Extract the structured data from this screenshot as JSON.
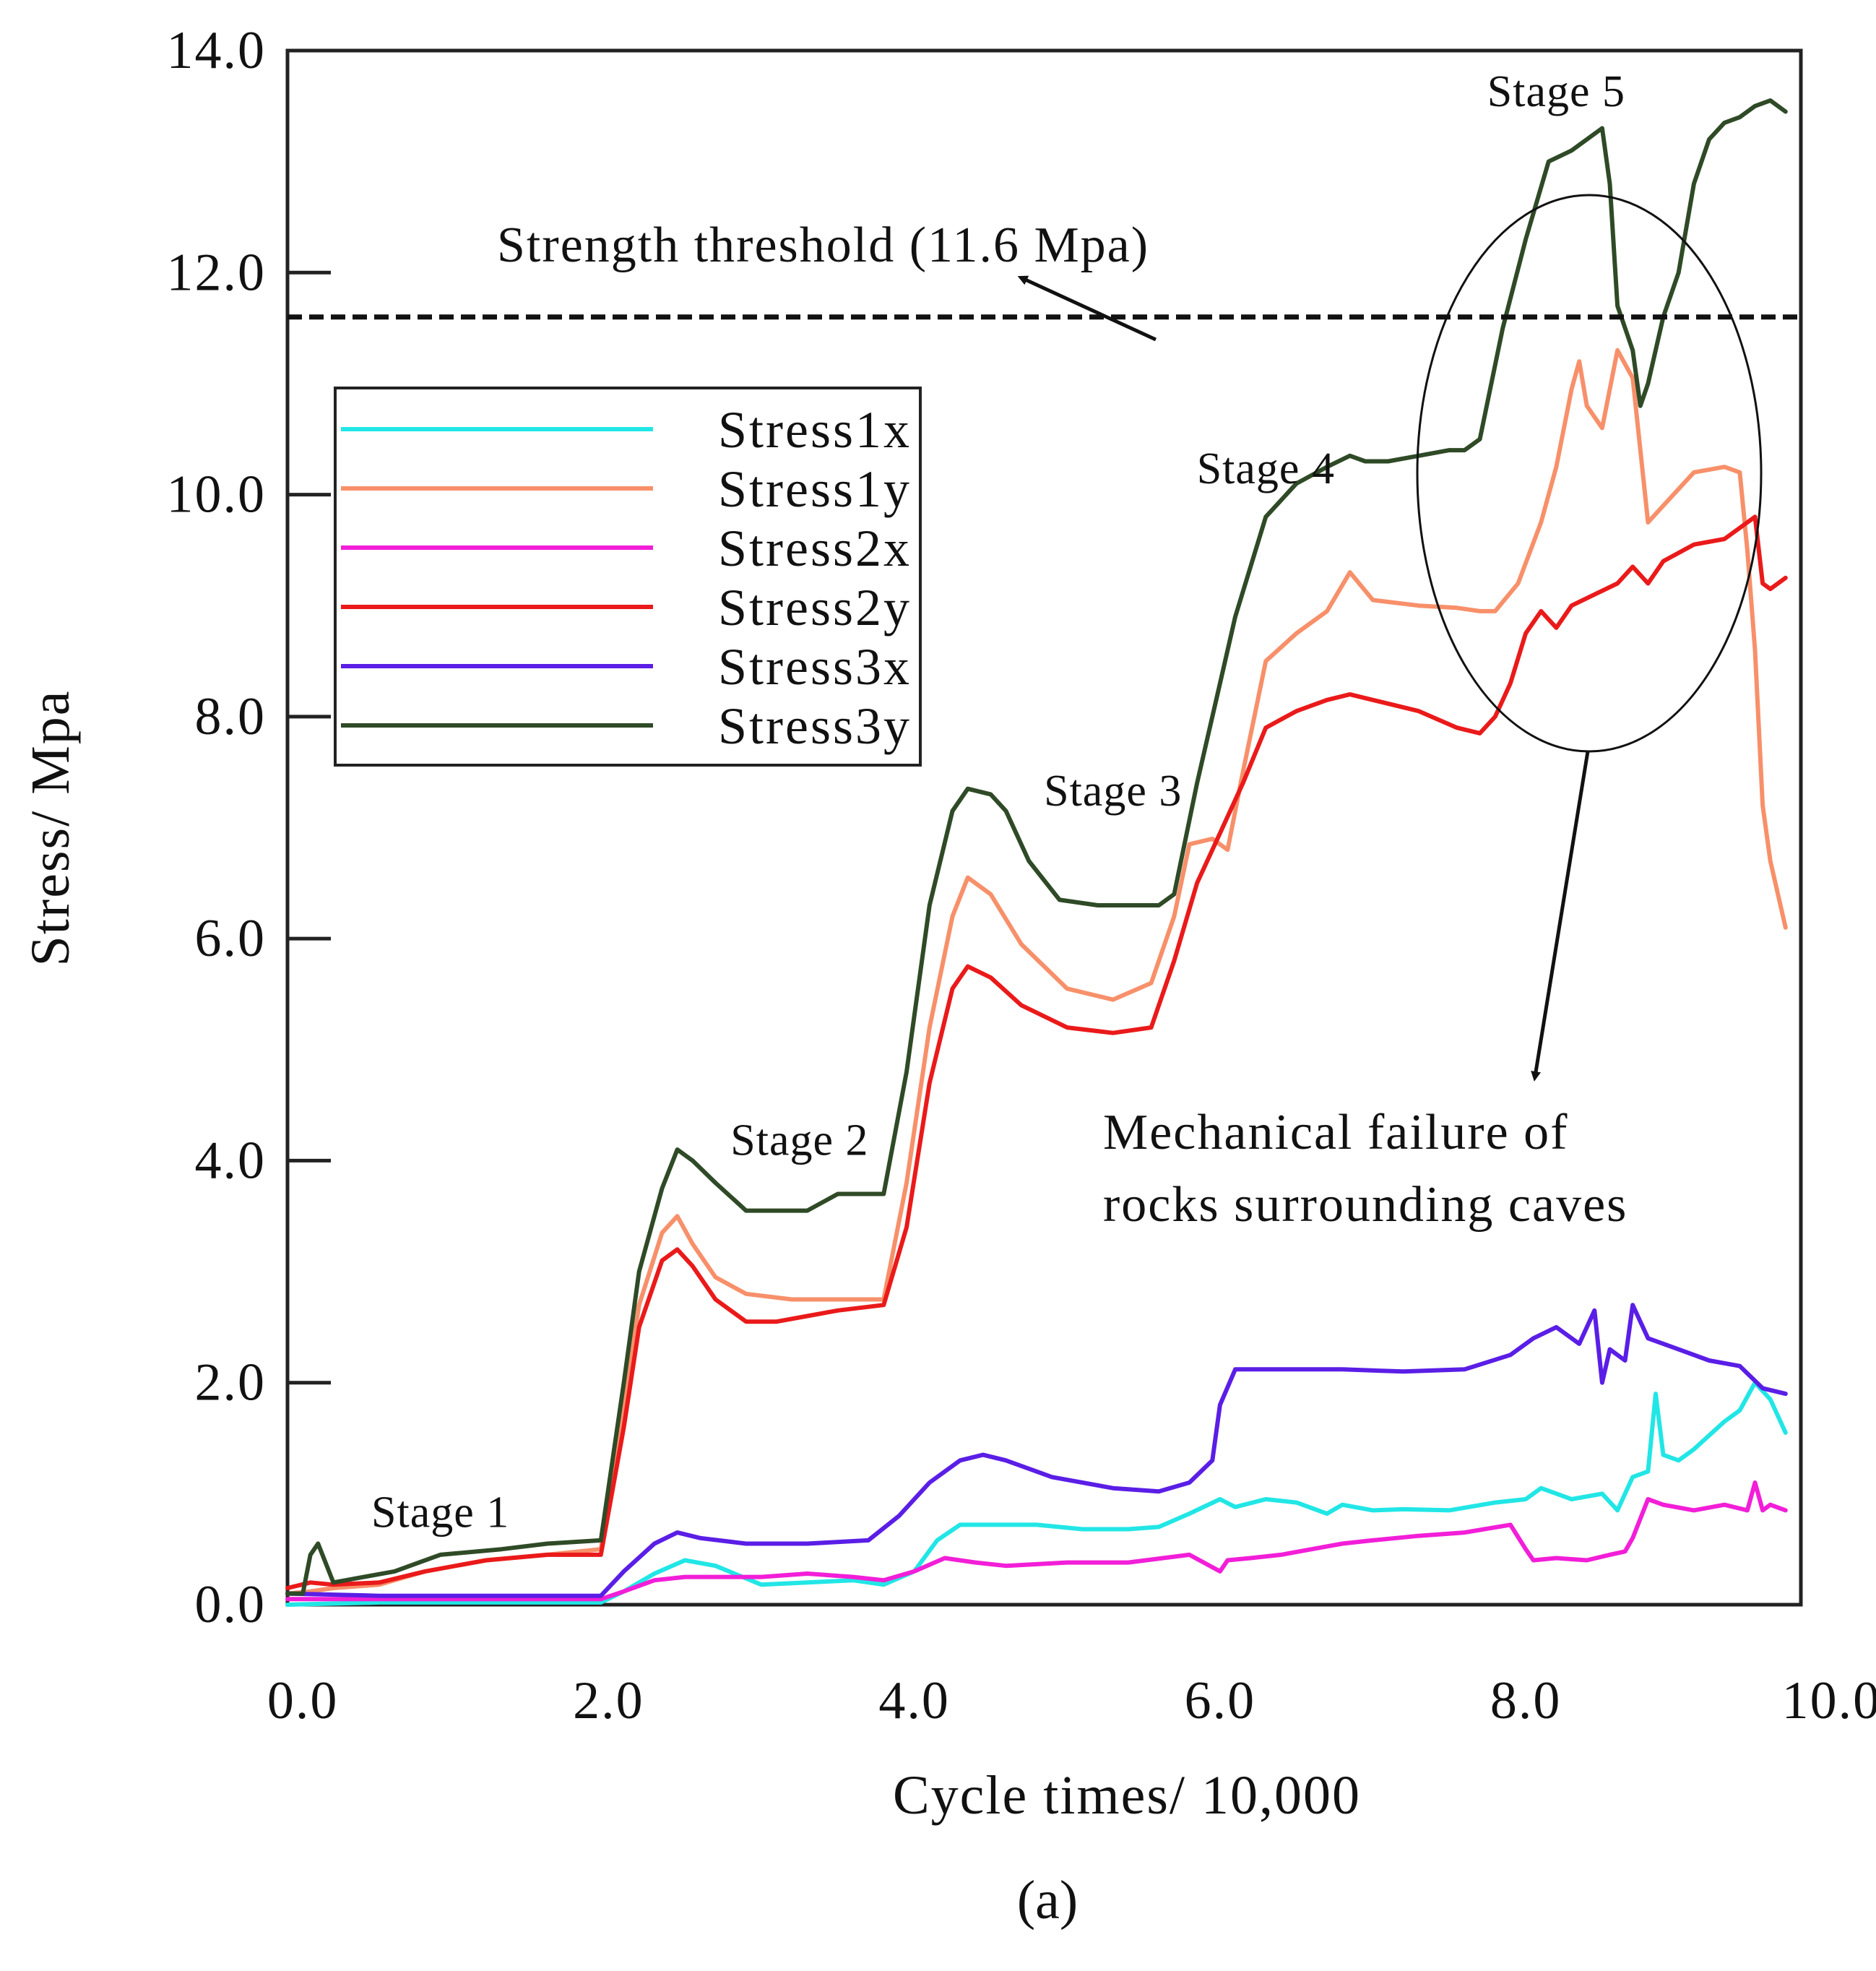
{
  "chart_data": {
    "type": "line",
    "title": "",
    "xlabel": "Cycle times/ 10,000",
    "ylabel": "Stress/ Mpa",
    "xlim": [
      -0.1,
      9.8
    ],
    "ylim": [
      0.0,
      14.0
    ],
    "x_ticks": [
      "0.0",
      "2.0",
      "4.0",
      "6.0",
      "8.0",
      "10.0"
    ],
    "y_ticks": [
      "0.0",
      "2.0",
      "4.0",
      "6.0",
      "8.0",
      "10.0",
      "12.0",
      "14.0"
    ],
    "grid": false,
    "legend_position": "upper-left",
    "threshold": {
      "label": "Strength threshold (11.6 Mpa)",
      "value": 11.6
    },
    "annotations": {
      "stages": [
        {
          "label": "Stage 1",
          "x": 0.9,
          "y": 0.7
        },
        {
          "label": "Stage 2",
          "x": 3.25,
          "y": 4.05
        },
        {
          "label": "Stage 3",
          "x": 5.3,
          "y": 7.2
        },
        {
          "label": "Stage 4",
          "x": 6.3,
          "y": 10.1
        },
        {
          "label": "Stage 5",
          "x": 8.2,
          "y": 13.5
        }
      ],
      "failure_note_line1": "Mechanical failure of",
      "failure_note_line2": "rocks surrounding caves"
    },
    "subfigure_label": "(a)",
    "series": [
      {
        "name": "Stress1x",
        "color": "#22e6e6",
        "x": [
          -0.1,
          0.5,
          1.0,
          1.5,
          1.95,
          2.1,
          2.3,
          2.5,
          2.7,
          3.0,
          3.3,
          3.6,
          3.8,
          4.0,
          4.15,
          4.3,
          4.5,
          4.8,
          5.1,
          5.4,
          5.6,
          5.8,
          6.0,
          6.1,
          6.3,
          6.5,
          6.7,
          6.8,
          7.0,
          7.2,
          7.5,
          7.8,
          8.0,
          8.1,
          8.3,
          8.5,
          8.6,
          8.7,
          8.8,
          8.85,
          8.9,
          9.0,
          9.1,
          9.3,
          9.4,
          9.5,
          9.6,
          9.7
        ],
        "y": [
          0.0,
          0.02,
          0.02,
          0.02,
          0.02,
          0.12,
          0.28,
          0.4,
          0.35,
          0.18,
          0.2,
          0.22,
          0.18,
          0.3,
          0.58,
          0.72,
          0.72,
          0.72,
          0.68,
          0.68,
          0.7,
          0.82,
          0.95,
          0.88,
          0.95,
          0.92,
          0.82,
          0.9,
          0.85,
          0.86,
          0.85,
          0.92,
          0.95,
          1.05,
          0.95,
          1.0,
          0.85,
          1.15,
          1.2,
          1.9,
          1.35,
          1.3,
          1.4,
          1.65,
          1.75,
          2.0,
          1.85,
          1.55
        ]
      },
      {
        "name": "Stress1y",
        "color": "#f7906a",
        "x": [
          -0.1,
          0.05,
          0.2,
          0.5,
          0.8,
          1.2,
          1.6,
          1.95,
          2.1,
          2.2,
          2.35,
          2.45,
          2.55,
          2.7,
          2.9,
          3.2,
          3.5,
          3.8,
          3.95,
          4.1,
          4.25,
          4.35,
          4.5,
          4.7,
          5.0,
          5.3,
          5.55,
          5.7,
          5.8,
          5.95,
          6.05,
          6.15,
          6.3,
          6.5,
          6.7,
          6.85,
          7.0,
          7.3,
          7.55,
          7.7,
          7.8,
          7.95,
          8.1,
          8.2,
          8.3,
          8.35,
          8.4,
          8.5,
          8.6,
          8.7,
          8.8,
          8.9,
          9.1,
          9.3,
          9.4,
          9.45,
          9.5,
          9.55,
          9.6,
          9.7
        ],
        "y": [
          0.1,
          0.12,
          0.15,
          0.18,
          0.3,
          0.4,
          0.45,
          0.5,
          1.8,
          2.7,
          3.35,
          3.5,
          3.25,
          2.95,
          2.8,
          2.75,
          2.75,
          2.75,
          3.8,
          5.2,
          6.2,
          6.55,
          6.4,
          5.95,
          5.55,
          5.45,
          5.6,
          6.2,
          6.85,
          6.9,
          6.8,
          7.5,
          8.5,
          8.75,
          8.95,
          9.3,
          9.05,
          9.0,
          8.98,
          8.95,
          8.95,
          9.2,
          9.75,
          10.25,
          10.95,
          11.2,
          10.8,
          10.6,
          11.3,
          11.05,
          9.75,
          9.9,
          10.2,
          10.25,
          10.2,
          9.5,
          8.6,
          7.2,
          6.7,
          6.1
        ]
      },
      {
        "name": "Stress2x",
        "color": "#f21ed8",
        "x": [
          -0.1,
          0.5,
          1.0,
          1.5,
          1.95,
          2.1,
          2.3,
          2.5,
          2.8,
          3.0,
          3.3,
          3.6,
          3.8,
          4.0,
          4.2,
          4.4,
          4.6,
          5.0,
          5.4,
          5.8,
          6.0,
          6.05,
          6.2,
          6.4,
          6.6,
          6.8,
          7.0,
          7.3,
          7.6,
          7.9,
          8.0,
          8.05,
          8.2,
          8.4,
          8.55,
          8.65,
          8.7,
          8.8,
          8.9,
          9.1,
          9.3,
          9.45,
          9.5,
          9.55,
          9.6,
          9.7
        ],
        "y": [
          0.05,
          0.05,
          0.05,
          0.05,
          0.05,
          0.12,
          0.22,
          0.25,
          0.25,
          0.25,
          0.28,
          0.25,
          0.22,
          0.3,
          0.42,
          0.38,
          0.35,
          0.38,
          0.38,
          0.45,
          0.3,
          0.4,
          0.42,
          0.45,
          0.5,
          0.55,
          0.58,
          0.62,
          0.65,
          0.72,
          0.5,
          0.4,
          0.42,
          0.4,
          0.45,
          0.48,
          0.6,
          0.95,
          0.9,
          0.85,
          0.9,
          0.85,
          1.1,
          0.85,
          0.9,
          0.85
        ]
      },
      {
        "name": "Stress2y",
        "color": "#ea1a1a",
        "x": [
          -0.1,
          0.05,
          0.2,
          0.5,
          0.8,
          1.2,
          1.6,
          1.95,
          2.1,
          2.2,
          2.35,
          2.45,
          2.55,
          2.7,
          2.9,
          3.1,
          3.3,
          3.5,
          3.8,
          3.95,
          4.1,
          4.25,
          4.35,
          4.5,
          4.7,
          5.0,
          5.3,
          5.55,
          5.7,
          5.85,
          6.0,
          6.15,
          6.3,
          6.5,
          6.7,
          6.85,
          7.0,
          7.3,
          7.55,
          7.7,
          7.8,
          7.9,
          8.0,
          8.1,
          8.2,
          8.3,
          8.45,
          8.6,
          8.7,
          8.8,
          8.9,
          9.1,
          9.3,
          9.45,
          9.5,
          9.55,
          9.6,
          9.7
        ],
        "y": [
          0.15,
          0.2,
          0.18,
          0.2,
          0.3,
          0.4,
          0.45,
          0.45,
          1.6,
          2.5,
          3.1,
          3.2,
          3.05,
          2.75,
          2.55,
          2.55,
          2.6,
          2.65,
          2.7,
          3.4,
          4.7,
          5.55,
          5.75,
          5.65,
          5.4,
          5.2,
          5.15,
          5.2,
          5.8,
          6.5,
          6.95,
          7.4,
          7.9,
          8.05,
          8.15,
          8.2,
          8.15,
          8.05,
          7.9,
          7.85,
          8.0,
          8.3,
          8.75,
          8.95,
          8.8,
          9.0,
          9.1,
          9.2,
          9.35,
          9.2,
          9.4,
          9.55,
          9.6,
          9.75,
          9.8,
          9.2,
          9.15,
          9.25
        ]
      },
      {
        "name": "Stress3x",
        "color": "#5a1ee6",
        "x": [
          -0.1,
          0.5,
          1.0,
          1.5,
          1.95,
          2.1,
          2.3,
          2.45,
          2.6,
          2.9,
          3.3,
          3.7,
          3.9,
          4.1,
          4.3,
          4.45,
          4.6,
          4.9,
          5.3,
          5.6,
          5.8,
          5.95,
          6.0,
          6.1,
          6.4,
          6.8,
          7.2,
          7.6,
          7.9,
          8.05,
          8.2,
          8.35,
          8.45,
          8.5,
          8.55,
          8.65,
          8.7,
          8.75,
          8.8,
          9.0,
          9.2,
          9.4,
          9.55,
          9.7
        ],
        "y": [
          0.1,
          0.08,
          0.08,
          0.08,
          0.08,
          0.3,
          0.55,
          0.65,
          0.6,
          0.55,
          0.55,
          0.58,
          0.8,
          1.1,
          1.3,
          1.35,
          1.3,
          1.15,
          1.05,
          1.02,
          1.1,
          1.3,
          1.8,
          2.12,
          2.12,
          2.12,
          2.1,
          2.12,
          2.25,
          2.4,
          2.5,
          2.35,
          2.65,
          2.0,
          2.3,
          2.2,
          2.7,
          2.55,
          2.4,
          2.3,
          2.2,
          2.15,
          1.95,
          1.9
        ]
      },
      {
        "name": "Stress3y",
        "color": "#2f4a26",
        "x": [
          -0.1,
          0.0,
          0.05,
          0.1,
          0.2,
          0.4,
          0.6,
          0.9,
          1.3,
          1.6,
          1.95,
          2.1,
          2.2,
          2.35,
          2.45,
          2.55,
          2.7,
          2.9,
          3.1,
          3.3,
          3.5,
          3.8,
          3.95,
          4.1,
          4.25,
          4.35,
          4.5,
          4.6,
          4.75,
          4.95,
          5.2,
          5.45,
          5.6,
          5.7,
          5.85,
          6.0,
          6.1,
          6.3,
          6.5,
          6.7,
          6.85,
          6.95,
          7.1,
          7.3,
          7.5,
          7.6,
          7.7,
          7.85,
          8.0,
          8.15,
          8.3,
          8.4,
          8.5,
          8.55,
          8.6,
          8.7,
          8.75,
          8.8,
          8.9,
          9.0,
          9.1,
          9.2,
          9.3,
          9.4,
          9.5,
          9.6,
          9.7
        ],
        "y": [
          0.1,
          0.1,
          0.45,
          0.55,
          0.2,
          0.25,
          0.3,
          0.45,
          0.5,
          0.55,
          0.58,
          2.0,
          3.0,
          3.75,
          4.1,
          4.0,
          3.8,
          3.55,
          3.55,
          3.55,
          3.7,
          3.7,
          4.8,
          6.3,
          7.15,
          7.35,
          7.3,
          7.15,
          6.7,
          6.35,
          6.3,
          6.3,
          6.3,
          6.4,
          7.4,
          8.3,
          8.9,
          9.8,
          10.1,
          10.25,
          10.35,
          10.3,
          10.3,
          10.35,
          10.4,
          10.4,
          10.5,
          11.5,
          12.3,
          13.0,
          13.1,
          13.2,
          13.3,
          12.8,
          11.7,
          11.3,
          10.8,
          11.0,
          11.6,
          12.0,
          12.8,
          13.2,
          13.35,
          13.4,
          13.5,
          13.55,
          13.45
        ]
      }
    ]
  }
}
